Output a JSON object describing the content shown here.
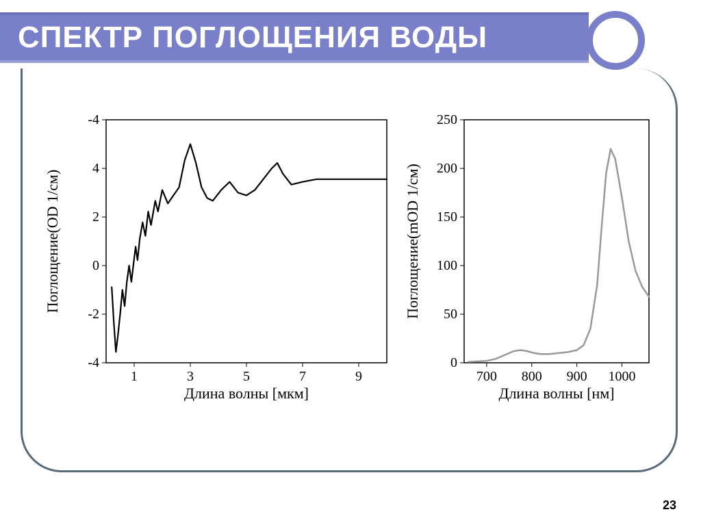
{
  "slide": {
    "title": "СПЕКТР ПОГЛОЩЕНИЯ ВОДЫ",
    "page_number": "23",
    "header_bg": "#7a7fc9",
    "frame_color": "#5a6a7a"
  },
  "chart_left": {
    "type": "line",
    "xlabel": "Длина волны [мкм]",
    "ylabel": "Поглощение(OD 1/см)",
    "xlim": [
      0,
      10
    ],
    "ylim": [
      -4,
      -4
    ],
    "yrange": [
      -4,
      5
    ],
    "xticks": [
      1,
      3,
      5,
      7,
      9
    ],
    "yticks": [
      -4,
      -2,
      0,
      2,
      4,
      -4
    ],
    "ytick_labels": [
      "-4",
      "-2",
      "0",
      "2",
      "4",
      "-4"
    ],
    "line_color": "#000000",
    "line_width": 2.2,
    "background_color": "#ffffff",
    "label_fontsize": 22,
    "tick_fontsize": 20,
    "data": [
      [
        0.2,
        -1.2
      ],
      [
        0.28,
        -2.6
      ],
      [
        0.35,
        -3.6
      ],
      [
        0.42,
        -3.0
      ],
      [
        0.5,
        -2.2
      ],
      [
        0.58,
        -1.3
      ],
      [
        0.66,
        -1.9
      ],
      [
        0.74,
        -1.0
      ],
      [
        0.82,
        -0.4
      ],
      [
        0.9,
        -1.0
      ],
      [
        0.98,
        -0.3
      ],
      [
        1.05,
        0.3
      ],
      [
        1.12,
        -0.2
      ],
      [
        1.2,
        0.6
      ],
      [
        1.3,
        1.2
      ],
      [
        1.4,
        0.7
      ],
      [
        1.5,
        1.6
      ],
      [
        1.6,
        1.1
      ],
      [
        1.75,
        2.0
      ],
      [
        1.85,
        1.6
      ],
      [
        2.0,
        2.4
      ],
      [
        2.2,
        1.9
      ],
      [
        2.4,
        2.2
      ],
      [
        2.6,
        2.5
      ],
      [
        2.8,
        3.5
      ],
      [
        3.0,
        4.1
      ],
      [
        3.2,
        3.4
      ],
      [
        3.4,
        2.5
      ],
      [
        3.6,
        2.1
      ],
      [
        3.8,
        2.0
      ],
      [
        4.1,
        2.4
      ],
      [
        4.4,
        2.7
      ],
      [
        4.7,
        2.3
      ],
      [
        5.0,
        2.2
      ],
      [
        5.3,
        2.4
      ],
      [
        5.6,
        2.8
      ],
      [
        5.9,
        3.2
      ],
      [
        6.1,
        3.4
      ],
      [
        6.3,
        3.0
      ],
      [
        6.6,
        2.6
      ],
      [
        7.0,
        2.7
      ],
      [
        7.5,
        2.8
      ],
      [
        8.0,
        2.8
      ],
      [
        8.5,
        2.8
      ],
      [
        9.0,
        2.8
      ],
      [
        9.5,
        2.8
      ],
      [
        10.0,
        2.8
      ]
    ]
  },
  "chart_right": {
    "type": "line",
    "xlabel": "Длина волны [нм]",
    "ylabel": "Поглощение(mOD 1/см)",
    "xlim": [
      650,
      1060
    ],
    "ylim": [
      0,
      250
    ],
    "xticks": [
      700,
      800,
      900,
      1000
    ],
    "yticks": [
      0,
      50,
      100,
      150,
      200,
      250
    ],
    "line_color": "#999999",
    "line_width": 2.5,
    "background_color": "#ffffff",
    "label_fontsize": 22,
    "tick_fontsize": 20,
    "data": [
      [
        660,
        1
      ],
      [
        680,
        1.5
      ],
      [
        700,
        2
      ],
      [
        720,
        4
      ],
      [
        740,
        8
      ],
      [
        760,
        12
      ],
      [
        775,
        13
      ],
      [
        790,
        12
      ],
      [
        805,
        10
      ],
      [
        820,
        9
      ],
      [
        840,
        9
      ],
      [
        860,
        10
      ],
      [
        880,
        11
      ],
      [
        900,
        13
      ],
      [
        915,
        18
      ],
      [
        930,
        35
      ],
      [
        945,
        80
      ],
      [
        955,
        140
      ],
      [
        965,
        195
      ],
      [
        975,
        220
      ],
      [
        985,
        210
      ],
      [
        1000,
        170
      ],
      [
        1015,
        125
      ],
      [
        1030,
        95
      ],
      [
        1045,
        78
      ],
      [
        1060,
        68
      ]
    ]
  }
}
